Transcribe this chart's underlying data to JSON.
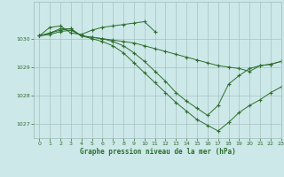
{
  "title": "Graphe pression niveau de la mer (hPa)",
  "bg_color": "#cce8e8",
  "line_color": "#2d6e2d",
  "grid_color": "#a0b8b8",
  "ylim": [
    1026.5,
    1031.3
  ],
  "xlim": [
    -0.5,
    23
  ],
  "yticks": [
    1027,
    1028,
    1029,
    1030
  ],
  "xticks": [
    0,
    1,
    2,
    3,
    4,
    5,
    6,
    7,
    8,
    9,
    10,
    11,
    12,
    13,
    14,
    15,
    16,
    17,
    18,
    19,
    20,
    21,
    22,
    23
  ],
  "series": [
    {
      "x": [
        0,
        1,
        2,
        3,
        4,
        5,
        6,
        7,
        8,
        9,
        10,
        11
      ],
      "y": [
        1030.1,
        1030.4,
        1030.45,
        1030.2,
        1030.15,
        1030.3,
        1030.4,
        1030.45,
        1030.5,
        1030.55,
        1030.6,
        1030.25
      ]
    },
    {
      "x": [
        0,
        1,
        2,
        3,
        4,
        5,
        6,
        7,
        8,
        9,
        10,
        11,
        12,
        13,
        14,
        15,
        16,
        17,
        18,
        19,
        20,
        21,
        22,
        23
      ],
      "y": [
        1030.1,
        1030.15,
        1030.25,
        1030.3,
        1030.1,
        1030.05,
        1030.0,
        1029.95,
        1029.9,
        1029.85,
        1029.75,
        1029.65,
        1029.55,
        1029.45,
        1029.35,
        1029.25,
        1029.15,
        1029.05,
        1029.0,
        1028.95,
        1028.85,
        1029.05,
        1029.1,
        1029.2
      ]
    },
    {
      "x": [
        0,
        1,
        2,
        3,
        4,
        5,
        6,
        7,
        8,
        9,
        10,
        11,
        12,
        13,
        14,
        15,
        16,
        17,
        18,
        19,
        20,
        21,
        22,
        23
      ],
      "y": [
        1030.1,
        1030.2,
        1030.35,
        1030.35,
        1030.1,
        1030.05,
        1030.0,
        1029.9,
        1029.75,
        1029.5,
        1029.2,
        1028.85,
        1028.5,
        1028.1,
        1027.8,
        1027.55,
        1027.3,
        1027.65,
        1028.4,
        1028.7,
        1028.95,
        1029.05,
        1029.1,
        1029.2
      ]
    },
    {
      "x": [
        0,
        1,
        2,
        3,
        4,
        5,
        6,
        7,
        8,
        9,
        10,
        11,
        12,
        13,
        14,
        15,
        16,
        17,
        18,
        19,
        20,
        21,
        22,
        23
      ],
      "y": [
        1030.1,
        1030.2,
        1030.3,
        1030.35,
        1030.1,
        1030.0,
        1029.9,
        1029.75,
        1029.5,
        1029.15,
        1028.8,
        1028.45,
        1028.1,
        1027.75,
        1027.45,
        1027.15,
        1026.95,
        1026.75,
        1027.05,
        1027.4,
        1027.65,
        1027.85,
        1028.1,
        1028.3
      ]
    }
  ]
}
